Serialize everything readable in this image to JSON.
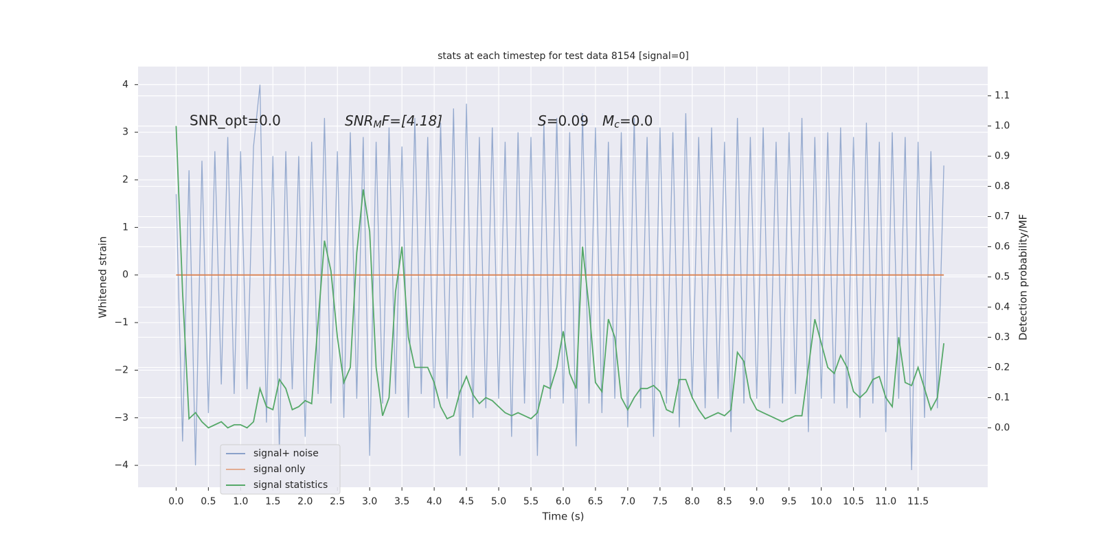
{
  "chart_data": {
    "type": "line",
    "title": "stats at each timestep for test data 8154 [signal=0]",
    "xlabel": "Time (s)",
    "ylabel": "Whitened strain",
    "y2label": "Detection probability/MF",
    "annotations": [
      "SNR_opt=0.0",
      {
        "base": "SNR",
        "sub": "M",
        "rest": "F=[4.18]"
      },
      {
        "base": "S",
        "rest": "=0.09"
      },
      {
        "base": "M",
        "sub": "c",
        "rest": "=0.0"
      }
    ],
    "grid": true,
    "legend": "lower left",
    "xlim": [
      -0.59,
      12.58
    ],
    "ylim": [
      -4.46,
      4.38
    ],
    "y2lim": [
      -0.197,
      1.197
    ],
    "xticks": [
      {
        "value": 0,
        "label": "0.0"
      },
      {
        "value": 0.5,
        "label": "0.5"
      },
      {
        "value": 1,
        "label": "1.0"
      },
      {
        "value": 1.5,
        "label": "1.5"
      },
      {
        "value": 2,
        "label": "2.0"
      },
      {
        "value": 2.5,
        "label": "2.5"
      },
      {
        "value": 3,
        "label": "3.0"
      },
      {
        "value": 3.5,
        "label": "3.5"
      },
      {
        "value": 4,
        "label": "4.0"
      },
      {
        "value": 4.5,
        "label": "4.5"
      },
      {
        "value": 5,
        "label": "5.0"
      },
      {
        "value": 5.5,
        "label": "5.5"
      },
      {
        "value": 6,
        "label": "6.0"
      },
      {
        "value": 6.5,
        "label": "6.5"
      },
      {
        "value": 7,
        "label": "7.0"
      },
      {
        "value": 7.5,
        "label": "7.5"
      },
      {
        "value": 8,
        "label": "8.0"
      },
      {
        "value": 8.5,
        "label": "8.5"
      },
      {
        "value": 9,
        "label": "9.0"
      },
      {
        "value": 9.5,
        "label": "9.5"
      },
      {
        "value": 10,
        "label": "10.0"
      },
      {
        "value": 10.5,
        "label": "10.5"
      },
      {
        "value": 11,
        "label": "11.0"
      },
      {
        "value": 11.5,
        "label": "11.5"
      }
    ],
    "yticks": [
      {
        "value": -4,
        "label": "−4"
      },
      {
        "value": -3,
        "label": "−3"
      },
      {
        "value": -2,
        "label": "−2"
      },
      {
        "value": -1,
        "label": "−1"
      },
      0,
      1,
      2,
      3,
      4
    ],
    "y2ticks": [
      {
        "value": 0,
        "label": "0.0"
      },
      {
        "value": 0.1,
        "label": "0.1"
      },
      {
        "value": 0.2,
        "label": "0.2"
      },
      {
        "value": 0.3,
        "label": "0.3"
      },
      {
        "value": 0.4,
        "label": "0.4"
      },
      {
        "value": 0.5,
        "label": "0.5"
      },
      {
        "value": 0.6,
        "label": "0.6"
      },
      {
        "value": 0.7,
        "label": "0.7"
      },
      {
        "value": 0.8,
        "label": "0.8"
      },
      {
        "value": 0.9,
        "label": "0.9"
      },
      {
        "value": 1,
        "label": "1.0"
      },
      {
        "value": 1.1,
        "label": "1.1"
      }
    ],
    "x": [
      0,
      0.1,
      0.2,
      0.3,
      0.4,
      0.5,
      0.6,
      0.7,
      0.8,
      0.9,
      1,
      1.1,
      1.2,
      1.3,
      1.4,
      1.5,
      1.6,
      1.7,
      1.8,
      1.9,
      2,
      2.1,
      2.2,
      2.3,
      2.4,
      2.5,
      2.6,
      2.7,
      2.8,
      2.9,
      3,
      3.1,
      3.2,
      3.3,
      3.4,
      3.5,
      3.6,
      3.7,
      3.8,
      3.9,
      4,
      4.1,
      4.2,
      4.3,
      4.4,
      4.5,
      4.6,
      4.7,
      4.8,
      4.9,
      5,
      5.1,
      5.2,
      5.3,
      5.4,
      5.5,
      5.6,
      5.7,
      5.8,
      5.9,
      6,
      6.1,
      6.2,
      6.3,
      6.4,
      6.5,
      6.6,
      6.7,
      6.8,
      6.9,
      7,
      7.1,
      7.2,
      7.3,
      7.4,
      7.5,
      7.6,
      7.7,
      7.8,
      7.9,
      8,
      8.1,
      8.2,
      8.3,
      8.4,
      8.5,
      8.6,
      8.7,
      8.8,
      8.9,
      9,
      9.1,
      9.2,
      9.3,
      9.4,
      9.5,
      9.6,
      9.7,
      9.8,
      9.9,
      10,
      10.1,
      10.2,
      10.3,
      10.4,
      10.5,
      10.6,
      10.7,
      10.8,
      10.9,
      11,
      11.1,
      11.2,
      11.3,
      11.4,
      11.5,
      11.6,
      11.7,
      11.8,
      11.9
    ],
    "series": [
      {
        "name": "signal+ noise",
        "color": "#4c72b0",
        "values": [
          1.7,
          -3.5,
          2.2,
          -4.0,
          2.4,
          -2.9,
          2.6,
          -2.3,
          2.9,
          -2.5,
          2.6,
          -2.4,
          2.7,
          4.0,
          -3.1,
          2.5,
          -3.7,
          2.6,
          -2.4,
          2.5,
          -3.4,
          2.8,
          -2.5,
          3.3,
          -2.7,
          2.6,
          -3.0,
          3.0,
          -2.6,
          2.9,
          -3.8,
          2.8,
          -2.7,
          3.1,
          -2.5,
          2.7,
          -3.0,
          3.3,
          -2.5,
          2.9,
          -2.8,
          3.2,
          -2.6,
          3.5,
          -3.8,
          3.6,
          -3.0,
          2.9,
          -2.8,
          3.1,
          -2.6,
          2.8,
          -3.4,
          3.0,
          -2.7,
          2.9,
          -3.8,
          3.2,
          -2.6,
          3.3,
          -2.7,
          3.0,
          -3.6,
          3.4,
          -2.7,
          3.1,
          -2.9,
          2.8,
          -2.6,
          3.0,
          -3.2,
          3.3,
          -2.8,
          2.9,
          -3.4,
          3.1,
          -2.7,
          3.0,
          -3.2,
          3.4,
          -2.6,
          2.9,
          -2.8,
          3.1,
          -2.6,
          2.8,
          -3.3,
          3.3,
          -2.7,
          2.9,
          -2.6,
          3.1,
          -2.8,
          2.8,
          -2.7,
          3.0,
          -2.5,
          3.3,
          -3.3,
          2.9,
          -2.6,
          3.0,
          -2.7,
          3.1,
          -2.8,
          2.9,
          -3.0,
          3.2,
          -2.7,
          2.8,
          -3.3,
          3.0,
          -2.6,
          2.9,
          -4.1,
          2.8,
          -3.0,
          2.6,
          -2.8,
          2.3
        ]
      },
      {
        "name": "signal only",
        "color": "#dd8452",
        "values": [
          0,
          0,
          0,
          0,
          0,
          0,
          0,
          0,
          0,
          0,
          0,
          0,
          0,
          0,
          0,
          0,
          0,
          0,
          0,
          0,
          0,
          0,
          0,
          0,
          0,
          0,
          0,
          0,
          0,
          0,
          0,
          0,
          0,
          0,
          0,
          0,
          0,
          0,
          0,
          0,
          0,
          0,
          0,
          0,
          0,
          0,
          0,
          0,
          0,
          0,
          0,
          0,
          0,
          0,
          0,
          0,
          0,
          0,
          0,
          0,
          0,
          0,
          0,
          0,
          0,
          0,
          0,
          0,
          0,
          0,
          0,
          0,
          0,
          0,
          0,
          0,
          0,
          0,
          0,
          0,
          0,
          0,
          0,
          0,
          0,
          0,
          0,
          0,
          0,
          0,
          0,
          0,
          0,
          0,
          0,
          0,
          0,
          0,
          0,
          0,
          0,
          0,
          0,
          0,
          0,
          0,
          0,
          0,
          0,
          0,
          0,
          0,
          0,
          0,
          0,
          0,
          0,
          0,
          0,
          0
        ]
      },
      {
        "name": "signal statistics",
        "color": "#55a868",
        "axis": "y2",
        "values": [
          1.0,
          0.45,
          0.03,
          0.05,
          0.02,
          0.0,
          0.01,
          0.02,
          0.0,
          0.01,
          0.01,
          0.0,
          0.02,
          0.13,
          0.07,
          0.06,
          0.16,
          0.13,
          0.06,
          0.07,
          0.09,
          0.08,
          0.35,
          0.62,
          0.52,
          0.3,
          0.15,
          0.2,
          0.58,
          0.79,
          0.65,
          0.2,
          0.04,
          0.1,
          0.45,
          0.6,
          0.3,
          0.2,
          0.2,
          0.2,
          0.15,
          0.07,
          0.03,
          0.04,
          0.12,
          0.17,
          0.11,
          0.08,
          0.1,
          0.09,
          0.07,
          0.05,
          0.04,
          0.05,
          0.04,
          0.03,
          0.05,
          0.14,
          0.13,
          0.2,
          0.32,
          0.18,
          0.13,
          0.6,
          0.4,
          0.15,
          0.12,
          0.36,
          0.3,
          0.1,
          0.06,
          0.1,
          0.13,
          0.13,
          0.14,
          0.12,
          0.06,
          0.05,
          0.16,
          0.16,
          0.1,
          0.06,
          0.03,
          0.04,
          0.05,
          0.04,
          0.06,
          0.25,
          0.22,
          0.1,
          0.06,
          0.05,
          0.04,
          0.03,
          0.02,
          0.03,
          0.04,
          0.04,
          0.2,
          0.36,
          0.28,
          0.2,
          0.18,
          0.24,
          0.2,
          0.12,
          0.1,
          0.12,
          0.16,
          0.17,
          0.1,
          0.07,
          0.3,
          0.15,
          0.14,
          0.2,
          0.13,
          0.06,
          0.1,
          0.28
        ]
      }
    ]
  }
}
